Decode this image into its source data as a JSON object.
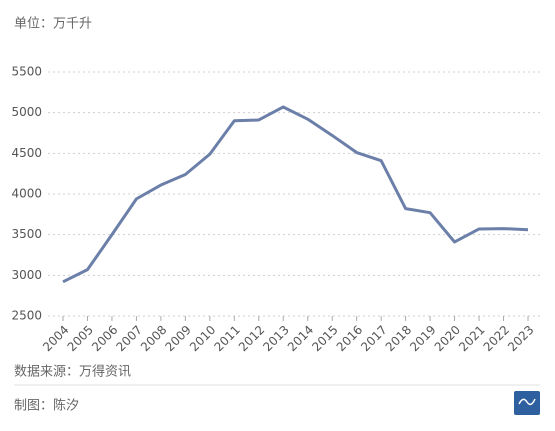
{
  "chart_data": {
    "type": "line",
    "unit": "单位：万千升",
    "source": "数据来源：万得资讯",
    "credit": "制图：陈汐",
    "x": [
      "2004",
      "2005",
      "2006",
      "2007",
      "2008",
      "2009",
      "2010",
      "2011",
      "2012",
      "2013",
      "2014",
      "2015",
      "2016",
      "2017",
      "2018",
      "2019",
      "2020",
      "2021",
      "2022",
      "2023"
    ],
    "series": [
      {
        "name": null,
        "color": "#6b7fa9",
        "values": [
          2920,
          3070,
          3500,
          3940,
          4110,
          4240,
          4490,
          4900,
          4910,
          5070,
          4920,
          4720,
          4510,
          4410,
          3820,
          3770,
          3410,
          3570,
          3575,
          3560
        ]
      }
    ],
    "ylim": [
      2500,
      5500
    ],
    "yticks": [
      2500,
      3000,
      3500,
      4000,
      4500,
      5000,
      5500
    ],
    "grid": true
  }
}
